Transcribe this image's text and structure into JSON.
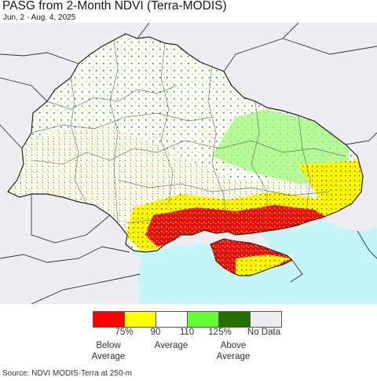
{
  "title": "PASG from 2-Month NDVI (Terra-MODIS)",
  "date_range": "Jun. 2 - Aug. 4, 2025",
  "source": "Source: NDVI MODIS-Terra at 250-m",
  "colors": {
    "background_land": "#efedf2",
    "water": "#c4f5f8",
    "below_75": "#ff0000",
    "75_90": "#ffff00",
    "90_110": "#ffffff",
    "110_125": "#66ff33",
    "above_125": "#267000",
    "no_data": "#efedf2",
    "border": "#333333"
  },
  "legend": {
    "swatches": [
      {
        "name": "below-75",
        "color": "#ff0000"
      },
      {
        "name": "75-90",
        "color": "#ffff00"
      },
      {
        "name": "90-110",
        "color": "#ffffff"
      },
      {
        "name": "110-125",
        "color": "#66ff33"
      },
      {
        "name": "above-125",
        "color": "#267000"
      },
      {
        "name": "no-data",
        "color": "#efedf2"
      }
    ],
    "ticks": [
      "75%",
      "90",
      "110",
      "125%",
      "No Data"
    ],
    "categories": {
      "below": [
        "Below",
        "Average"
      ],
      "average": "Average",
      "above": [
        "Above",
        "Average"
      ]
    }
  }
}
